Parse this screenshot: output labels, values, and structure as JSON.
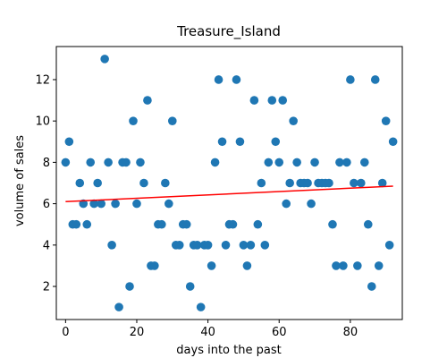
{
  "chart_data": {
    "type": "scatter",
    "title": "Treasure_Island",
    "xlabel": "days into the past",
    "ylabel": "volume of sales",
    "xlim": [
      -2.6,
      94.6
    ],
    "ylim": [
      0.4,
      13.6
    ],
    "xticks": [
      0,
      20,
      40,
      60,
      80
    ],
    "yticks": [
      2,
      4,
      6,
      8,
      10,
      12
    ],
    "grid": false,
    "legend": false,
    "series": [
      {
        "type": "scatter",
        "color": "#1f77b4",
        "x": [
          0,
          1,
          2,
          3,
          4,
          5,
          6,
          7,
          8,
          9,
          10,
          11,
          12,
          13,
          14,
          15,
          16,
          17,
          18,
          19,
          20,
          21,
          22,
          23,
          24,
          25,
          26,
          27,
          28,
          29,
          30,
          31,
          32,
          33,
          34,
          35,
          36,
          37,
          38,
          39,
          40,
          41,
          42,
          43,
          44,
          45,
          46,
          47,
          48,
          49,
          50,
          51,
          52,
          53,
          54,
          55,
          56,
          57,
          58,
          59,
          60,
          61,
          62,
          63,
          64,
          65,
          66,
          67,
          68,
          69,
          70,
          71,
          72,
          73,
          74,
          75,
          76,
          77,
          78,
          79,
          80,
          81,
          82,
          83,
          84,
          85,
          86,
          87,
          88,
          89,
          90,
          91,
          92
        ],
        "y": [
          8,
          9,
          5,
          5,
          7,
          6,
          5,
          8,
          6,
          7,
          6,
          13,
          8,
          4,
          6,
          1,
          8,
          8,
          2,
          10,
          6,
          8,
          7,
          11,
          3,
          3,
          5,
          5,
          7,
          6,
          10,
          4,
          4,
          5,
          5,
          2,
          4,
          4,
          1,
          4,
          4,
          3,
          8,
          12,
          9,
          4,
          5,
          5,
          12,
          9,
          4,
          3,
          4,
          11,
          5,
          7,
          4,
          8,
          11,
          9,
          8,
          11,
          6,
          7,
          10,
          8,
          7,
          7,
          7,
          6,
          8,
          7,
          7,
          7,
          7,
          5,
          3,
          8,
          3,
          8,
          12,
          7,
          3,
          7,
          8,
          5,
          2,
          12,
          3,
          7,
          10,
          4,
          9
        ]
      },
      {
        "type": "line",
        "role": "trend",
        "color": "#ff0000",
        "x": [
          0,
          92
        ],
        "y": [
          6.1,
          6.85
        ]
      }
    ]
  }
}
